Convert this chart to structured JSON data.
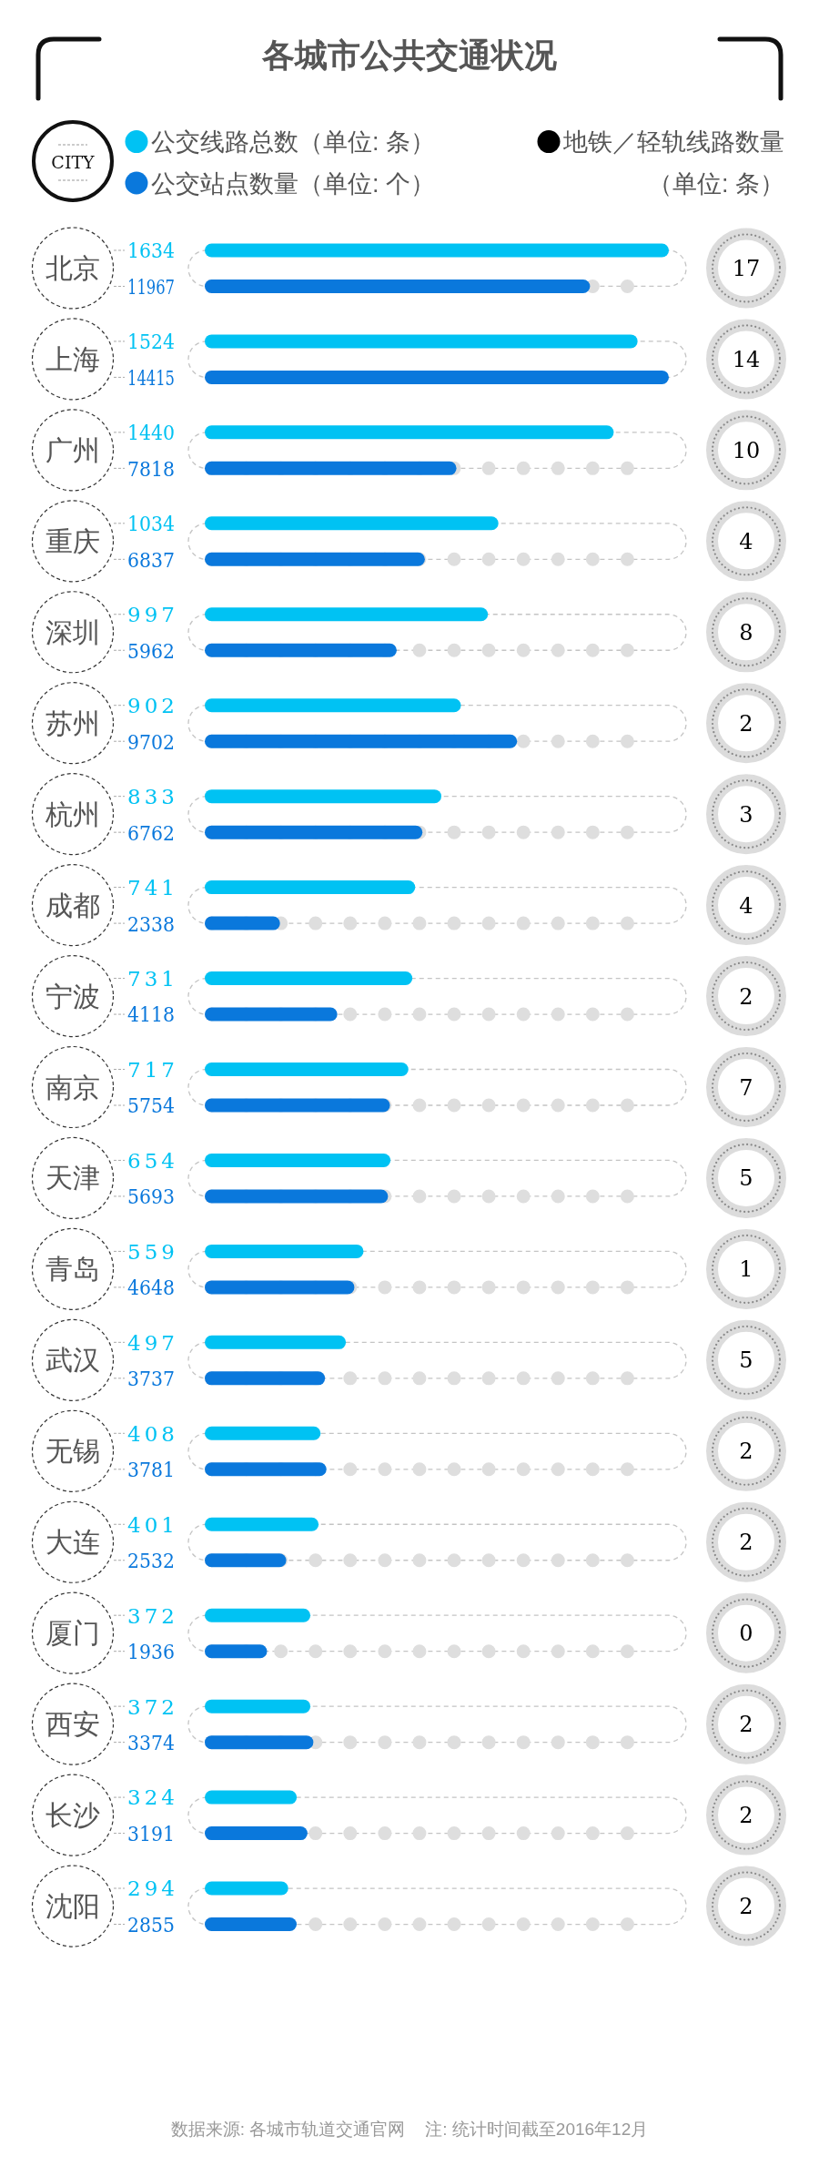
{
  "chart_data": [
    {
      "type": "bar",
      "orientation": "horizontal",
      "title": "各城市公共交通状况",
      "ylabel": "CITY",
      "categories": [
        "北京",
        "上海",
        "广州",
        "重庆",
        "深圳",
        "苏州",
        "杭州",
        "成都",
        "宁波",
        "南京",
        "天津",
        "青岛",
        "武汉",
        "无锡",
        "大连",
        "厦门",
        "西安",
        "长沙",
        "沈阳"
      ],
      "series": [
        {
          "name": "公交线路总数（单位: 条）",
          "color": "#00c2f3",
          "values": [
            1634,
            1524,
            1440,
            1034,
            997,
            902,
            833,
            741,
            731,
            717,
            654,
            559,
            497,
            408,
            401,
            372,
            372,
            324,
            294
          ]
        }
      ],
      "data_labels": true,
      "legend": "top left"
    },
    {
      "type": "bar",
      "orientation": "horizontal",
      "categories": [
        null,
        null,
        null,
        null,
        null,
        null,
        null,
        null,
        null,
        null,
        null,
        null,
        null,
        null,
        null,
        null,
        null,
        null,
        null
      ],
      "series": [
        {
          "name": "公交站点数量（单位: 个）",
          "color": "#0a78dc",
          "values": [
            11967,
            14415,
            7818,
            6837,
            5962,
            9702,
            6762,
            2338,
            4118,
            5754,
            5693,
            4648,
            3737,
            3781,
            2532,
            1936,
            3374,
            3191,
            2855
          ]
        }
      ],
      "data_labels": true,
      "legend": "top left"
    },
    {
      "type": "other",
      "series": [
        {
          "name": "地铁／轻轨线路数量（单位: 条）",
          "color": "#000000",
          "values": [
            17,
            14,
            10,
            4,
            8,
            2,
            3,
            4,
            2,
            7,
            5,
            1,
            5,
            2,
            2,
            0,
            2,
            2,
            2
          ]
        }
      ],
      "data_labels": true,
      "legend": "top right",
      "annotations": [
        "数据来源: 各城市轨道交通官网",
        "注: 统计时间截至2016年12月"
      ]
    }
  ]
}
